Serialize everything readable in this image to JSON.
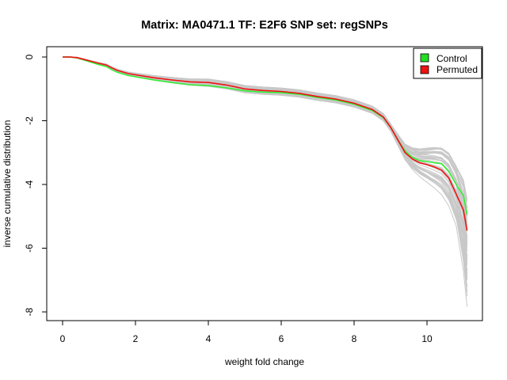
{
  "chart_data": {
    "type": "line",
    "title": "Matrix: MA0471.1 TF: E2F6 SNP set: regSNPs",
    "xlabel": "weight fold change",
    "ylabel": "inverse cumulative distribution",
    "xlim": [
      0,
      11.2
    ],
    "ylim": [
      -8.25,
      0.25
    ],
    "x_ticks": [
      0,
      2,
      4,
      6,
      8,
      10
    ],
    "y_ticks": [
      0,
      -2,
      -4,
      -6,
      -8
    ],
    "x_tick_labels": [
      "0",
      "2",
      "4",
      "6",
      "8",
      "10"
    ],
    "y_tick_labels": [
      "0",
      "-2",
      "-4",
      "-6",
      "-8"
    ],
    "grid": false,
    "legend_position": "top-right",
    "legend": [
      {
        "label": "Control",
        "color": "#22dd22"
      },
      {
        "label": "Permuted",
        "color": "#ee1111"
      }
    ],
    "series": [
      {
        "name": "Control",
        "color": "#33ee33",
        "x": [
          0,
          0.2,
          0.4,
          0.6,
          0.8,
          1.0,
          1.2,
          1.35,
          1.5,
          1.8,
          2.0,
          2.5,
          3.0,
          3.5,
          4.0,
          4.5,
          5.0,
          5.5,
          6.0,
          6.5,
          7.0,
          7.5,
          8.0,
          8.5,
          8.8,
          9.0,
          9.2,
          9.4,
          9.6,
          9.8,
          10.0,
          10.2,
          10.4,
          10.6,
          10.8,
          11.0,
          11.1
        ],
        "y": [
          0,
          0,
          -0.03,
          -0.1,
          -0.17,
          -0.24,
          -0.3,
          -0.4,
          -0.48,
          -0.58,
          -0.62,
          -0.72,
          -0.8,
          -0.87,
          -0.9,
          -0.97,
          -1.06,
          -1.1,
          -1.12,
          -1.17,
          -1.27,
          -1.35,
          -1.48,
          -1.68,
          -1.9,
          -2.2,
          -2.6,
          -2.95,
          -3.15,
          -3.25,
          -3.28,
          -3.32,
          -3.35,
          -3.6,
          -4.0,
          -4.35,
          -4.95
        ]
      },
      {
        "name": "Permuted",
        "color": "#ee1111",
        "x": [
          0,
          0.2,
          0.4,
          0.6,
          0.8,
          1.0,
          1.2,
          1.35,
          1.5,
          1.8,
          2.0,
          2.5,
          3.0,
          3.5,
          4.0,
          4.5,
          5.0,
          5.5,
          6.0,
          6.5,
          7.0,
          7.5,
          8.0,
          8.5,
          8.8,
          9.0,
          9.2,
          9.4,
          9.6,
          9.8,
          10.0,
          10.2,
          10.4,
          10.6,
          10.8,
          11.0,
          11.1
        ],
        "y": [
          0,
          0,
          -0.02,
          -0.08,
          -0.14,
          -0.2,
          -0.25,
          -0.34,
          -0.42,
          -0.52,
          -0.56,
          -0.65,
          -0.72,
          -0.78,
          -0.8,
          -0.88,
          -1.0,
          -1.05,
          -1.08,
          -1.14,
          -1.24,
          -1.32,
          -1.45,
          -1.65,
          -1.88,
          -2.2,
          -2.6,
          -3.0,
          -3.2,
          -3.32,
          -3.38,
          -3.45,
          -3.55,
          -3.8,
          -4.3,
          -4.8,
          -5.45
        ]
      }
    ]
  }
}
